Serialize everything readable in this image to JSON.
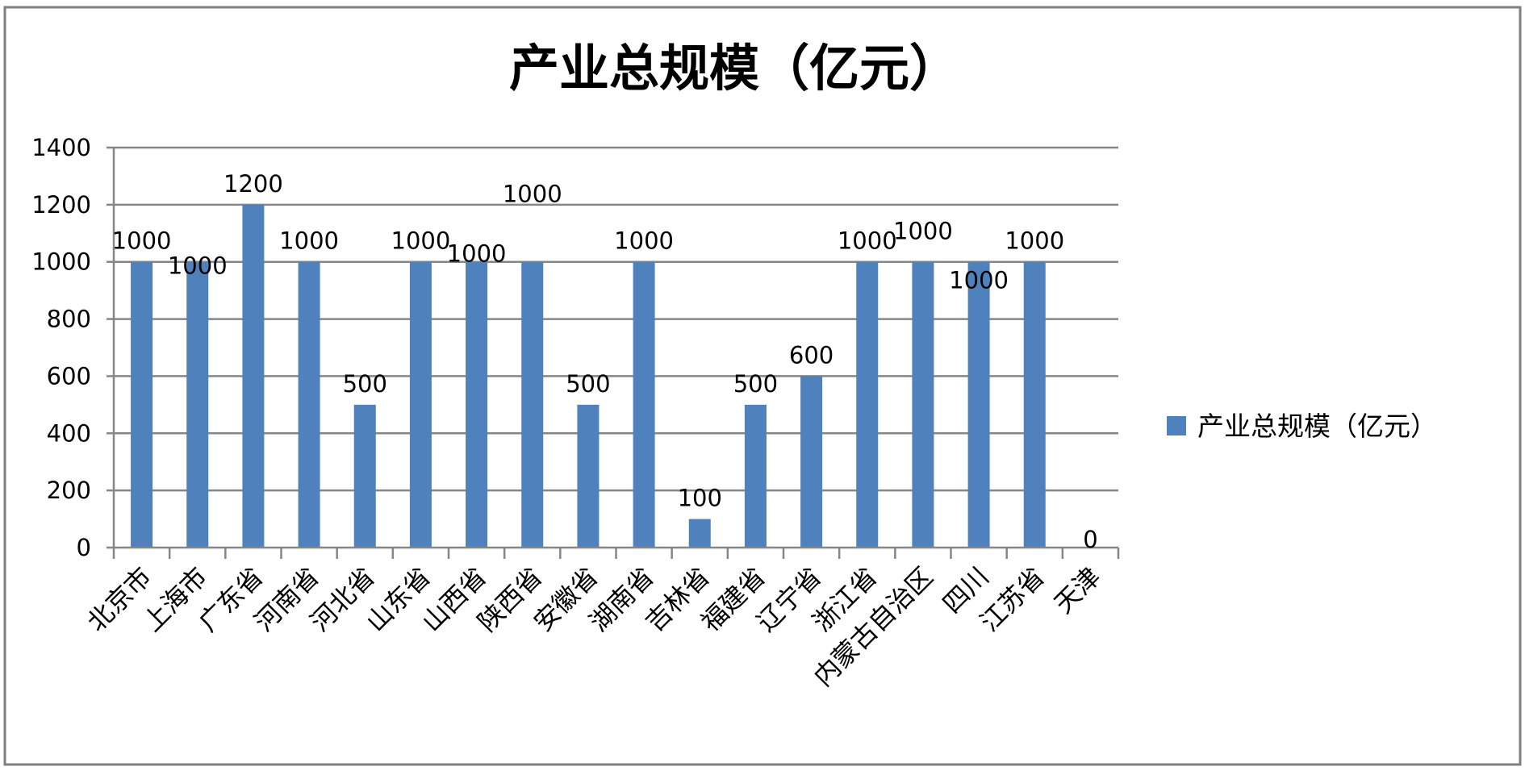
{
  "chart_data": {
    "type": "bar",
    "title": "产业总规模（亿元）",
    "xlabel": "",
    "ylabel": "",
    "categories": [
      "北京市",
      "上海市",
      "广东省",
      "河南省",
      "河北省",
      "山东省",
      "山西省",
      "陕西省",
      "安徽省",
      "湖南省",
      "吉林省",
      "福建省",
      "辽宁省",
      "浙江省",
      "内蒙古自治区",
      "四川",
      "江苏省",
      "天津"
    ],
    "series": [
      {
        "name": "产业总规模（亿元）",
        "values": [
          1000,
          1000,
          1200,
          1000,
          500,
          1000,
          1000,
          1000,
          500,
          1000,
          100,
          500,
          600,
          1000,
          1000,
          1000,
          1000,
          0
        ],
        "color": "#4f81bd"
      }
    ],
    "data_labels": [
      "1000",
      "1000",
      "1200",
      "1000",
      "500",
      "1000",
      "1000",
      "1000",
      "500",
      "1000",
      "100",
      "500",
      "600",
      "1000",
      "1000",
      "1000",
      "1000",
      "0"
    ],
    "yticks": [
      "0",
      "200",
      "400",
      "600",
      "800",
      "1000",
      "1200",
      "1400"
    ],
    "ylim": [
      0,
      1400
    ],
    "grid": true,
    "legend_position": "right"
  }
}
